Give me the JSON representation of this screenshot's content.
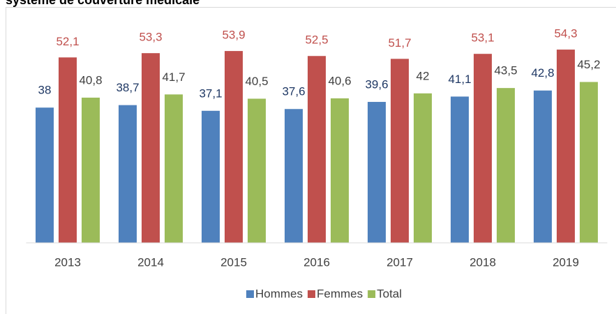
{
  "chart_data": {
    "type": "bar",
    "title": "système de couverture médicale",
    "categories": [
      "2013",
      "2014",
      "2015",
      "2016",
      "2017",
      "2018",
      "2019"
    ],
    "series": [
      {
        "name": "Hommes",
        "color": "#4f81bd",
        "label_color": "#1f3864",
        "values": [
          38,
          38.7,
          37.1,
          37.6,
          39.6,
          41.1,
          42.8
        ],
        "value_labels": [
          "38",
          "38,7",
          "37,1",
          "37,6",
          "39,6",
          "41,1",
          "42,8"
        ]
      },
      {
        "name": "Femmes",
        "color": "#c0504d",
        "label_color": "#c0504d",
        "values": [
          52.1,
          53.3,
          53.9,
          52.5,
          51.7,
          53.1,
          54.3
        ],
        "value_labels": [
          "52,1",
          "53,3",
          "53,9",
          "52,5",
          "51,7",
          "53,1",
          "54,3"
        ]
      },
      {
        "name": "Total",
        "color": "#9bbb59",
        "label_color": "#404040",
        "values": [
          40.8,
          41.7,
          40.5,
          40.6,
          42,
          43.5,
          45.2
        ],
        "value_labels": [
          "40,8",
          "41,7",
          "40,5",
          "40,6",
          "42",
          "43,5",
          "45,2"
        ]
      }
    ],
    "ylim": [
      0,
      60
    ],
    "legend": "bottom"
  }
}
